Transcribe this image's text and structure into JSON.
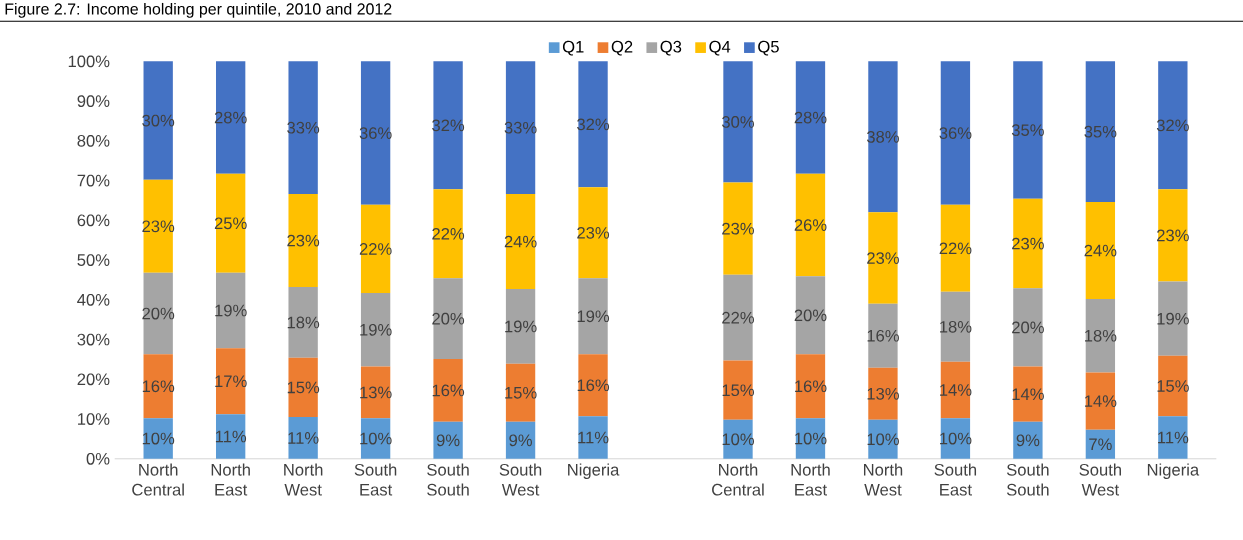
{
  "chart_data": {
    "type": "bar",
    "stacked": true,
    "title": "Figure 2.7: Income holding per quintile, 2010 and 2012",
    "categories": [
      "North Central",
      "North East",
      "North West",
      "South East",
      "South South",
      "South West",
      "Nigeria",
      null,
      "North Central",
      "North East",
      "North West",
      "South East",
      "South South",
      "South West",
      "Nigeria"
    ],
    "series": [
      {
        "name": "Q1",
        "color": "#5b9bd5",
        "values": [
          10.2,
          11.2,
          10.5,
          10.2,
          9.3,
          9.3,
          10.7,
          null,
          9.8,
          10.2,
          9.8,
          10.2,
          9.3,
          7.3,
          10.7
        ],
        "value_labels": [
          "10%",
          "11%",
          "11%",
          "10%",
          "9%",
          "9%",
          "11%",
          null,
          "10%",
          "10%",
          "10%",
          "10%",
          "9%",
          "7%",
          "11%"
        ]
      },
      {
        "name": "Q2",
        "color": "#ed7d31",
        "values": [
          16.1,
          16.6,
          14.9,
          13.0,
          15.8,
          14.6,
          15.6,
          null,
          14.9,
          16.1,
          13.1,
          14.2,
          13.9,
          14.4,
          15.2
        ],
        "value_labels": [
          "16%",
          "17%",
          "15%",
          "13%",
          "16%",
          "15%",
          "16%",
          null,
          "15%",
          "16%",
          "13%",
          "14%",
          "14%",
          "14%",
          "15%"
        ]
      },
      {
        "name": "Q3",
        "color": "#a5a5a5",
        "values": [
          20.5,
          19.0,
          17.8,
          18.5,
          20.3,
          18.8,
          19.1,
          null,
          21.6,
          19.6,
          16.1,
          17.6,
          19.7,
          18.5,
          18.7
        ],
        "value_labels": [
          "20%",
          "19%",
          "18%",
          "19%",
          "20%",
          "19%",
          "19%",
          null,
          "22%",
          "20%",
          "16%",
          "18%",
          "20%",
          "18%",
          "19%"
        ]
      },
      {
        "name": "Q4",
        "color": "#ffc000",
        "values": [
          23.4,
          24.9,
          23.4,
          22.2,
          22.4,
          23.9,
          22.9,
          null,
          23.2,
          25.8,
          23.0,
          21.9,
          22.5,
          24.4,
          23.2
        ],
        "value_labels": [
          "23%",
          "25%",
          "23%",
          "22%",
          "22%",
          "24%",
          "23%",
          null,
          "23%",
          "26%",
          "23%",
          "22%",
          "23%",
          "24%",
          "23%"
        ]
      },
      {
        "name": "Q5",
        "color": "#4472c4",
        "values": [
          29.8,
          28.3,
          33.4,
          36.1,
          32.2,
          33.4,
          31.7,
          null,
          30.5,
          28.3,
          38.0,
          36.1,
          34.6,
          35.4,
          32.2
        ],
        "value_labels": [
          "30%",
          "28%",
          "33%",
          "36%",
          "32%",
          "33%",
          "32%",
          null,
          "30%",
          "28%",
          "38%",
          "36%",
          "35%",
          "35%",
          "32%"
        ]
      }
    ],
    "ylim": [
      0,
      100
    ],
    "yticks": [
      {
        "value": 0,
        "label": "0%"
      },
      {
        "value": 10,
        "label": "10%"
      },
      {
        "value": 20,
        "label": "20%"
      },
      {
        "value": 30,
        "label": "30%"
      },
      {
        "value": 40,
        "label": "40%"
      },
      {
        "value": 50,
        "label": "50%"
      },
      {
        "value": 60,
        "label": "60%"
      },
      {
        "value": 70,
        "label": "70%"
      },
      {
        "value": 80,
        "label": "80%"
      },
      {
        "value": 90,
        "label": "90%"
      },
      {
        "value": 100,
        "label": "100%"
      }
    ],
    "grid": false,
    "legend": "top"
  }
}
